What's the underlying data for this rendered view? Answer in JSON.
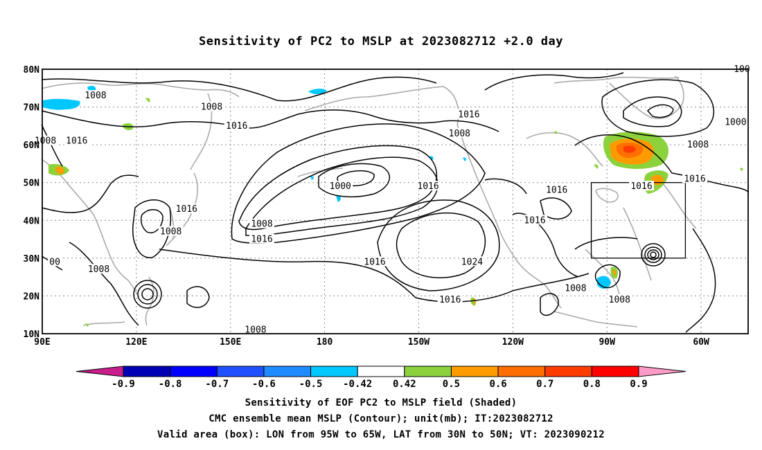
{
  "title": "Sensitivity of PC2 to MSLP at 2023082712 +2.0 day",
  "map": {
    "lat_labels": [
      "80N",
      "70N",
      "60N",
      "50N",
      "40N",
      "30N",
      "20N",
      "10N"
    ],
    "lon_labels": [
      "90E",
      "120E",
      "150E",
      "180",
      "150W",
      "120W",
      "90W",
      "60W"
    ],
    "lon_range": [
      90,
      315
    ],
    "lat_range": [
      10,
      80
    ],
    "contour_labels": [
      {
        "text": "1008",
        "lon": 107,
        "lat": 73
      },
      {
        "text": "1008",
        "lon": 144,
        "lat": 70
      },
      {
        "text": "1016",
        "lon": 152,
        "lat": 65
      },
      {
        "text": "1016",
        "lon": 101,
        "lat": 61
      },
      {
        "text": "1008",
        "lon": 91,
        "lat": 61
      },
      {
        "text": "1016",
        "lon": 226,
        "lat": 68
      },
      {
        "text": "1008",
        "lon": 223,
        "lat": 63
      },
      {
        "text": "1000",
        "lon": 185,
        "lat": 49
      },
      {
        "text": "1016",
        "lon": 213,
        "lat": 49
      },
      {
        "text": "1016",
        "lon": 281,
        "lat": 49
      },
      {
        "text": "1016",
        "lon": 298,
        "lat": 51
      },
      {
        "text": "1008",
        "lon": 299,
        "lat": 60
      },
      {
        "text": "1000",
        "lon": 311,
        "lat": 66
      },
      {
        "text": "1016",
        "lon": 136,
        "lat": 43
      },
      {
        "text": "1008",
        "lon": 131,
        "lat": 37
      },
      {
        "text": "1008",
        "lon": 160,
        "lat": 39
      },
      {
        "text": "1016",
        "lon": 160,
        "lat": 35
      },
      {
        "text": "1016",
        "lon": 196,
        "lat": 29
      },
      {
        "text": "1024",
        "lon": 227,
        "lat": 29
      },
      {
        "text": "1016",
        "lon": 247,
        "lat": 40
      },
      {
        "text": "1016",
        "lon": 254,
        "lat": 48
      },
      {
        "text": "1008",
        "lon": 108,
        "lat": 27
      },
      {
        "text": "00",
        "lon": 94,
        "lat": 29
      },
      {
        "text": "1008",
        "lon": 158,
        "lat": 11
      },
      {
        "text": "1016",
        "lon": 220,
        "lat": 19
      },
      {
        "text": "1008",
        "lon": 260,
        "lat": 22
      },
      {
        "text": "1008",
        "lon": 274,
        "lat": 19
      },
      {
        "text": "100",
        "lon": 313,
        "lat": 80
      }
    ],
    "valid_box": {
      "lon": [
        265,
        295
      ],
      "lat": [
        30,
        50
      ]
    }
  },
  "colorbar": {
    "labels": [
      "-0.9",
      "-0.8",
      "-0.7",
      "-0.6",
      "-0.5",
      "-0.42",
      "0.42",
      "0.5",
      "0.6",
      "0.7",
      "0.8",
      "0.9"
    ],
    "colors": {
      "below": "#c81e8c",
      "bins": [
        "#0000b4",
        "#0000ff",
        "#1e50ff",
        "#1e8cff",
        "#00c8ff",
        "#ffffff",
        "#8cd23c",
        "#ff9b00",
        "#ff6e00",
        "#ff3c00",
        "#ff0000"
      ],
      "above": "#ff9bc8"
    }
  },
  "captions": [
    "Sensitivity of EOF PC2 to MSLP field (Shaded)",
    "CMC ensemble mean MSLP (Contour); unit(mb); IT:2023082712",
    "Valid area (box): LON from 95W to 65W, LAT from 30N to 50N; VT: 2023090212"
  ]
}
